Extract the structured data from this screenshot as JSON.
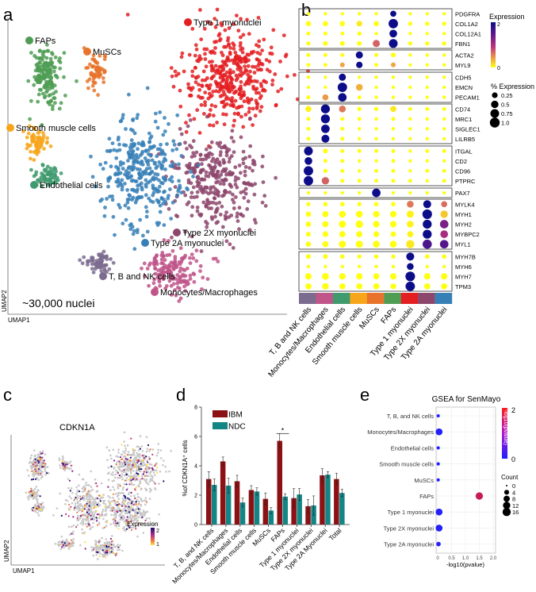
{
  "panels": {
    "a": "a",
    "b": "b",
    "c": "c",
    "d": "d",
    "e": "e"
  },
  "colors": {
    "t_b_nk": "#7b6b8e",
    "mono": "#c0558a",
    "endo": "#3f9a6e",
    "smooth": "#f7a51a",
    "muscs": "#e8742c",
    "faps": "#4f9d55",
    "type1": "#e41f22",
    "type2x": "#8d466c",
    "type2a": "#3780b7",
    "ibm": "#8b1114",
    "ndc": "#138585"
  },
  "panel_a": {
    "clusters": [
      {
        "key": "faps",
        "label": "FAPs"
      },
      {
        "key": "muscs",
        "label": "MuSCs"
      },
      {
        "key": "type1",
        "label": "Type 1 myonuclei"
      },
      {
        "key": "smooth",
        "label": "Smooth muscle cells"
      },
      {
        "key": "endo",
        "label": "Endothelial cells"
      },
      {
        "key": "type2x",
        "label": "Type 2X myonuclei"
      },
      {
        "key": "type2a",
        "label": "Type 2A myonuclei"
      },
      {
        "key": "t_b_nk",
        "label": "T, B and NK cells"
      },
      {
        "key": "mono",
        "label": "Monocytes/Macrophages"
      }
    ],
    "nuclei_count": "~30,000 nuclei",
    "xlabel": "UMAP1",
    "ylabel": "UMAP2"
  },
  "chart_data": [
    {
      "type": "dotplot",
      "panel": "b",
      "clusters": [
        "T, B and NK cells",
        "Monocytes/Macrophages",
        "Endothelial cells",
        "Smooth muscle cells",
        "MuSCs",
        "FAPs",
        "Type 1 myonuclei",
        "Type 2X myonuclei",
        "Type 2A myonuclei"
      ],
      "cluster_keys": [
        "t_b_nk",
        "mono",
        "endo",
        "smooth",
        "muscs",
        "faps",
        "type1",
        "type2x",
        "type2a"
      ],
      "gene_groups": [
        [
          "PDGFRA",
          "COL1A2",
          "COL12A1",
          "FBN1"
        ],
        [
          "ACTA2",
          "MYL9"
        ],
        [
          "CDH5",
          "EMCN",
          "PECAM1"
        ],
        [
          "CD74",
          "MRC1",
          "SIGLEC1",
          "LILRB5"
        ],
        [
          "ITGAL",
          "CD2",
          "CD96",
          "PTPRC"
        ],
        [
          "PAX7"
        ],
        [
          "MYLK4",
          "MYH1",
          "MYH2",
          "MYBPC2",
          "MYL1"
        ],
        [
          "MYH7B",
          "MYH6",
          "MYH7",
          "TPM3"
        ]
      ],
      "pct_expression": {
        "PDGFRA": [
          0.05,
          0.05,
          0.05,
          0.05,
          0.05,
          0.3,
          0.05,
          0.05,
          0.05
        ],
        "COL1A2": [
          0.2,
          0.2,
          0.2,
          0.25,
          0.2,
          0.9,
          0.1,
          0.1,
          0.1
        ],
        "COL12A1": [
          0.08,
          0.08,
          0.08,
          0.1,
          0.05,
          0.55,
          0.05,
          0.05,
          0.05
        ],
        "FBN1": [
          0.1,
          0.15,
          0.15,
          0.15,
          0.45,
          0.75,
          0.1,
          0.1,
          0.1
        ],
        "ACTA2": [
          0.08,
          0.08,
          0.08,
          0.45,
          0.08,
          0.15,
          0.05,
          0.05,
          0.05
        ],
        "MYL9": [
          0.08,
          0.08,
          0.15,
          0.35,
          0.08,
          0.15,
          0.05,
          0.05,
          0.05
        ],
        "CDH5": [
          0.05,
          0.05,
          0.45,
          0.05,
          0.05,
          0.05,
          0.05,
          0.05,
          0.05
        ],
        "EMCN": [
          0.05,
          0.05,
          0.9,
          0.4,
          0.05,
          0.05,
          0.05,
          0.05,
          0.05
        ],
        "PECAM1": [
          0.08,
          0.3,
          0.7,
          0.08,
          0.05,
          0.05,
          0.05,
          0.05,
          0.05
        ],
        "CD74": [
          0.3,
          0.8,
          0.4,
          0.1,
          0.1,
          0.3,
          0.08,
          0.08,
          0.08
        ],
        "MRC1": [
          0.08,
          0.8,
          0.08,
          0.08,
          0.05,
          0.08,
          0.05,
          0.05,
          0.05
        ],
        "SIGLEC1": [
          0.08,
          0.7,
          0.08,
          0.05,
          0.05,
          0.05,
          0.05,
          0.05,
          0.05
        ],
        "LILRB5": [
          0.08,
          0.6,
          0.08,
          0.05,
          0.05,
          0.05,
          0.05,
          0.05,
          0.05
        ],
        "ITGAL": [
          0.75,
          0.15,
          0.08,
          0.08,
          0.08,
          0.08,
          0.05,
          0.08,
          0.08
        ],
        "CD2": [
          0.55,
          0.08,
          0.08,
          0.05,
          0.05,
          0.08,
          0.05,
          0.05,
          0.05
        ],
        "CD96": [
          0.9,
          0.1,
          0.08,
          0.05,
          0.08,
          0.08,
          0.05,
          0.08,
          0.08
        ],
        "PTPRC": [
          0.9,
          0.5,
          0.08,
          0.08,
          0.08,
          0.08,
          0.08,
          0.05,
          0.08
        ],
        "PAX7": [
          0.05,
          0.05,
          0.05,
          0.05,
          0.7,
          0.05,
          0.05,
          0.05,
          0.05
        ],
        "MYLK4": [
          0.1,
          0.12,
          0.12,
          0.1,
          0.12,
          0.12,
          0.4,
          0.6,
          0.3
        ],
        "MYH1": [
          0.2,
          0.3,
          0.4,
          0.4,
          0.35,
          0.35,
          0.45,
          0.95,
          0.5
        ],
        "MYH2": [
          0.2,
          0.3,
          0.45,
          0.5,
          0.35,
          0.35,
          0.4,
          0.8,
          0.7
        ],
        "MYBPC2": [
          0.15,
          0.25,
          0.3,
          0.3,
          0.25,
          0.2,
          0.3,
          0.8,
          0.55
        ],
        "MYL1": [
          0.2,
          0.3,
          0.45,
          0.45,
          0.4,
          0.4,
          0.65,
          0.85,
          0.7
        ],
        "MYH7B": [
          0.15,
          0.15,
          0.12,
          0.1,
          0.12,
          0.1,
          0.6,
          0.12,
          0.12
        ],
        "MYH6": [
          0.05,
          0.05,
          0.05,
          0.05,
          0.05,
          0.05,
          0.4,
          0.05,
          0.05
        ],
        "MYH7": [
          0.35,
          0.4,
          0.35,
          0.35,
          0.3,
          0.35,
          0.95,
          0.35,
          0.35
        ],
        "TPM3": [
          0.3,
          0.35,
          0.3,
          0.3,
          0.3,
          0.25,
          0.9,
          0.3,
          0.3
        ]
      },
      "avg_expression": {
        "PDGFRA": [
          0,
          0,
          0,
          0,
          0,
          2,
          0,
          0,
          0
        ],
        "COL1A2": [
          0,
          0,
          0,
          0.1,
          0,
          2,
          0,
          0,
          0
        ],
        "COL12A1": [
          0,
          0,
          0,
          0,
          0,
          2,
          0,
          0,
          0
        ],
        "FBN1": [
          0,
          0,
          0,
          0,
          0.7,
          2,
          0,
          0,
          0
        ],
        "ACTA2": [
          0,
          0,
          0,
          2,
          0,
          0,
          0,
          0,
          0
        ],
        "MYL9": [
          0,
          0,
          0.4,
          2,
          0,
          0.4,
          0,
          0,
          0
        ],
        "CDH5": [
          0,
          0,
          2,
          0,
          0,
          0,
          0,
          0,
          0
        ],
        "EMCN": [
          0,
          0,
          2,
          0.35,
          0,
          0,
          0,
          0,
          0
        ],
        "PECAM1": [
          0,
          0.45,
          2,
          0,
          0,
          0,
          0,
          0,
          0
        ],
        "CD74": [
          0.05,
          2,
          0.6,
          0,
          0,
          0.1,
          0,
          0,
          0
        ],
        "MRC1": [
          0,
          2,
          0,
          0,
          0,
          0,
          0,
          0,
          0
        ],
        "SIGLEC1": [
          0,
          2,
          0,
          0,
          0,
          0,
          0,
          0,
          0
        ],
        "LILRB5": [
          0,
          2,
          0,
          0,
          0,
          0,
          0,
          0,
          0
        ],
        "ITGAL": [
          2,
          0,
          0,
          0,
          0,
          0,
          0,
          0,
          0
        ],
        "CD2": [
          2,
          0,
          0,
          0,
          0,
          0,
          0,
          0,
          0
        ],
        "CD96": [
          2,
          0,
          0,
          0,
          0,
          0,
          0,
          0,
          0
        ],
        "PTPRC": [
          2,
          0.7,
          0,
          0,
          0,
          0,
          0,
          0,
          0
        ],
        "PAX7": [
          0,
          0,
          0,
          0,
          2,
          0,
          0,
          0,
          0
        ],
        "MYLK4": [
          0,
          0,
          0,
          0,
          0,
          0,
          0.6,
          2,
          0.65
        ],
        "MYH1": [
          0,
          0,
          0,
          0,
          0,
          0,
          0.05,
          2,
          0.25
        ],
        "MYH2": [
          0,
          0,
          0,
          0,
          0,
          0,
          0.05,
          2,
          1.3
        ],
        "MYBPC2": [
          0,
          0,
          0,
          0,
          0,
          0,
          0.05,
          2,
          1.05
        ],
        "MYL1": [
          0,
          0,
          0,
          0,
          0,
          0,
          0.1,
          1.6,
          1.55
        ],
        "MYH7B": [
          0,
          0,
          0,
          0,
          0,
          0,
          2,
          0,
          0
        ],
        "MYH6": [
          0,
          0,
          0,
          0,
          0,
          0,
          2,
          0,
          0
        ],
        "MYH7": [
          0,
          0,
          0,
          0,
          0,
          0,
          2,
          0,
          0
        ],
        "TPM3": [
          0,
          0,
          0,
          0,
          0,
          0,
          2,
          0,
          0
        ]
      },
      "color_legend": {
        "title": "Expression",
        "max_label": "2",
        "min_label": "0",
        "range": [
          0,
          2
        ]
      },
      "size_legend": {
        "title": "% Expression",
        "values": [
          0.25,
          0.5,
          0.75,
          1.0
        ],
        "labels": [
          "0.25",
          "0.5",
          "0.75",
          "1.0"
        ]
      }
    },
    {
      "type": "scatter",
      "panel": "c",
      "title": "CDKN1A",
      "xlabel": "UMAP1",
      "ylabel": "UMAP2",
      "legend": {
        "title": "Expression",
        "max_label": "2",
        "min_label": "1"
      }
    },
    {
      "type": "bar",
      "panel": "d",
      "categories": [
        "T, B, and NK cells",
        "Monocytes/Macrophages",
        "Endothelial cells",
        "Smooth muscle cells",
        "MuSCs",
        "FAPs",
        "Type 1 myonuclei",
        "Type 2X myonuclei",
        "Type 2A Myonuclei",
        "Total"
      ],
      "series": [
        {
          "name": "IBM",
          "key": "ibm",
          "values": [
            3.1,
            4.3,
            2.95,
            2.35,
            1.75,
            5.7,
            1.8,
            1.25,
            3.35,
            3.1
          ],
          "errors": [
            0.5,
            0.3,
            0.4,
            0.3,
            0.4,
            0.5,
            0.65,
            0.45,
            0.45,
            0.4
          ]
        },
        {
          "name": "NDC",
          "key": "ndc",
          "values": [
            2.7,
            2.65,
            1.5,
            2.25,
            0.95,
            1.9,
            2.05,
            1.3,
            3.4,
            2.15
          ],
          "errors": [
            0.4,
            0.5,
            0.3,
            0.25,
            0.2,
            0.2,
            0.4,
            0.65,
            0.2,
            0.25
          ]
        }
      ],
      "ylabel": "%of CDKN1A⁺ cells",
      "ylim": [
        0,
        8
      ],
      "yticks": [
        0,
        2,
        4,
        6,
        8
      ],
      "annotation": {
        "text": "*",
        "category": "FAPs"
      },
      "legend_position": "top-left"
    },
    {
      "type": "scatter",
      "panel": "e",
      "title": "GSEA for SenMayo",
      "categories": [
        "T, B, and NK cells",
        "Monocytes/Macrophages",
        "Endothelial cells",
        "Smooth muscle cells",
        "MuSCs",
        "FAPs",
        "Type 1 myonuclei",
        "Type 2X myonuclei",
        "Type 2A myonuclei"
      ],
      "neg_log10_pvalue": [
        0.02,
        0.05,
        0.02,
        0.02,
        0.02,
        1.5,
        0.05,
        0.05,
        0.03
      ],
      "count": [
        1,
        10,
        1,
        1,
        1,
        12,
        10,
        10,
        3
      ],
      "xlabel": "-log10(pvalue)",
      "xlim": [
        0,
        2.0
      ],
      "xticks": [
        "0",
        "0.5",
        "1.0",
        "1.5",
        "2.0"
      ],
      "color_legend": {
        "title": "-log10(pvalue)",
        "max_label": "2",
        "min_label": "0",
        "low": "#1f1fff",
        "high": "#ff1a1a"
      },
      "size_legend": {
        "title": "Count",
        "values": [
          0,
          4,
          8,
          12,
          16
        ],
        "labels": [
          "0",
          "4",
          "8",
          "12",
          "16"
        ]
      }
    }
  ]
}
